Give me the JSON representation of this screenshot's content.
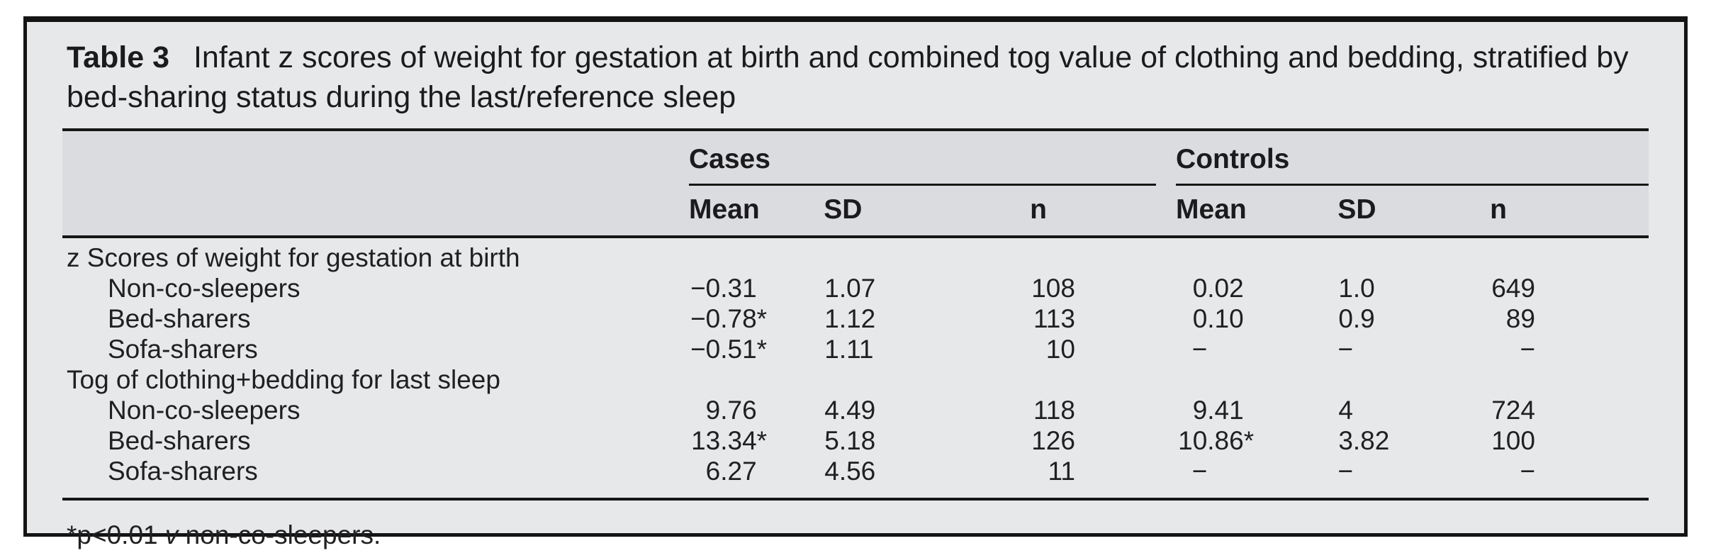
{
  "colors": {
    "box_background": "#e7e8ea",
    "header_band_background": "#dbdcdf",
    "border": "#141414",
    "text": "#1d1d1f"
  },
  "title": {
    "label": "Table 3",
    "text": "Infant z scores of weight for gestation at birth and combined tog value of clothing and bedding, stratified by bed-sharing status during the last/reference sleep"
  },
  "table": {
    "groups": [
      {
        "label": "Cases"
      },
      {
        "label": "Controls"
      }
    ],
    "sub_headers": [
      "Mean",
      "SD",
      "n",
      "Mean",
      "SD",
      "n"
    ],
    "rows": [
      {
        "label": "z Scores of weight for gestation at birth",
        "section": true
      },
      {
        "label": "Non-co-sleepers",
        "indent": true,
        "cells": [
          "−0.31",
          "1.07",
          "108",
          "0.02",
          "1.0",
          "649"
        ]
      },
      {
        "label": "Bed-sharers",
        "indent": true,
        "cells": [
          "−0.78*",
          "1.12",
          "113",
          "0.10",
          "0.9",
          "89"
        ]
      },
      {
        "label": "Sofa-sharers",
        "indent": true,
        "cells": [
          "−0.51*",
          "1.11",
          "10",
          "−",
          "−",
          "−"
        ]
      },
      {
        "label": "Tog of clothing+bedding for last sleep",
        "section": true
      },
      {
        "label": "Non-co-sleepers",
        "indent": true,
        "cells": [
          "9.76",
          "4.49",
          "118",
          "9.41",
          "4",
          "724"
        ]
      },
      {
        "label": "Bed-sharers",
        "indent": true,
        "cells": [
          "13.34*",
          "5.18",
          "126",
          "10.86*",
          "3.82",
          "100"
        ]
      },
      {
        "label": "Sofa-sharers",
        "indent": true,
        "cells": [
          "6.27",
          "4.56",
          "11",
          "−",
          "−",
          "−"
        ]
      }
    ]
  },
  "footnote": {
    "prefix": "*p<0.01 ",
    "versus": "v",
    "suffix": " non-co-sleepers."
  }
}
